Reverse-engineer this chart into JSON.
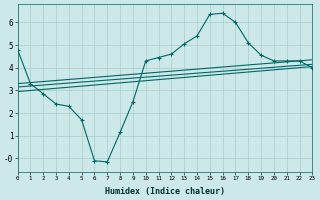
{
  "xlabel": "Humidex (Indice chaleur)",
  "bg_color": "#cde8e8",
  "grid_color": "#aacccc",
  "line_color": "#006666",
  "ylim": [
    -0.6,
    6.8
  ],
  "xlim": [
    0,
    23
  ],
  "curve_x": [
    0,
    1,
    2,
    3,
    4,
    5,
    6,
    7,
    8,
    9,
    10,
    11,
    12,
    13,
    14,
    15,
    16,
    17,
    18,
    19,
    20,
    21,
    22,
    23
  ],
  "curve_y": [
    4.8,
    3.3,
    2.85,
    2.4,
    2.3,
    1.7,
    -0.1,
    -0.15,
    1.15,
    2.5,
    4.3,
    4.45,
    4.6,
    5.05,
    5.4,
    6.35,
    6.4,
    6.0,
    5.1,
    4.55,
    4.3,
    4.3,
    4.3,
    4.0
  ],
  "line1_x": [
    0,
    23
  ],
  "line1_y": [
    3.3,
    4.35
  ],
  "line2_x": [
    0,
    23
  ],
  "line2_y": [
    3.15,
    4.15
  ],
  "line3_x": [
    0,
    23
  ],
  "line3_y": [
    2.95,
    4.05
  ],
  "curve_marker_x": [
    0,
    1,
    2,
    3,
    4,
    5,
    6,
    7,
    8,
    9,
    10,
    11,
    12,
    13,
    14,
    15,
    16,
    17,
    18,
    19,
    20,
    21,
    22,
    23
  ],
  "yticks": [
    0,
    1,
    2,
    3,
    4,
    5,
    6
  ],
  "ytick_labels": [
    "-0",
    "1",
    "2",
    "3",
    "4",
    "5",
    "6"
  ],
  "xticks": [
    0,
    1,
    2,
    3,
    4,
    5,
    6,
    7,
    8,
    9,
    10,
    11,
    12,
    13,
    14,
    15,
    16,
    17,
    18,
    19,
    20,
    21,
    22,
    23
  ]
}
